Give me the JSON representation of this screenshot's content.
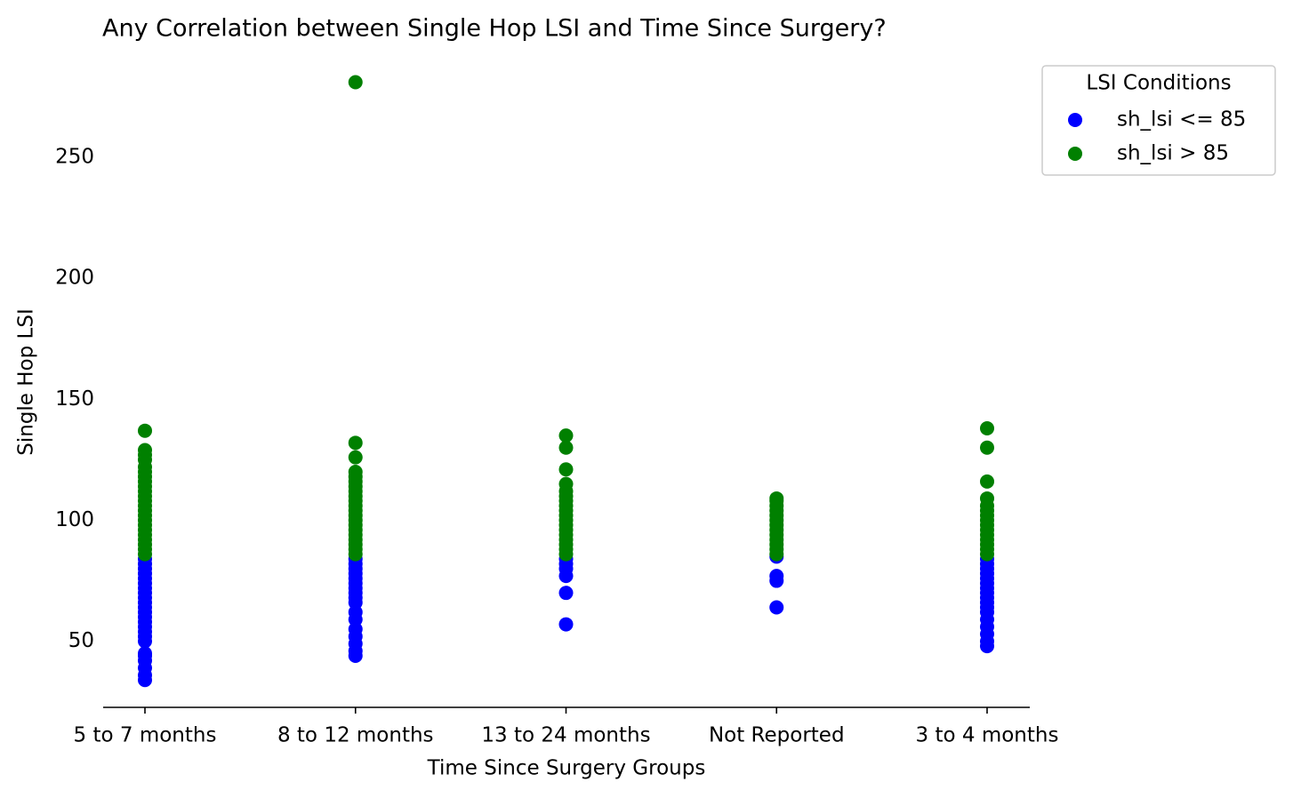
{
  "chart_data": {
    "type": "scatter",
    "title": "Any Correlation between Single Hop LSI and Time Since Surgery?",
    "x_label": "Time Since Surgery Groups",
    "y_label": "Single Hop LSI",
    "categories": [
      "5 to 7 months",
      "8 to 12 months",
      "13 to 24 months",
      "Not Reported",
      "3 to 4 months"
    ],
    "ylim": [
      22.7,
      293.3
    ],
    "yticks": [
      50,
      100,
      150,
      200,
      250
    ],
    "legend_title": "LSI Conditions",
    "legend": "upper right outside",
    "series": [
      {
        "name": "sh_lsi <= 85",
        "color": "#0000ff",
        "values": [
          [
            34,
            36,
            39,
            42,
            44,
            45,
            50,
            52,
            54,
            56,
            58,
            60,
            62,
            64,
            66,
            68,
            70,
            72,
            74,
            76,
            78,
            80,
            82,
            84
          ],
          [
            44,
            46,
            49,
            52,
            55,
            59,
            62,
            66,
            68,
            70,
            72,
            74,
            76,
            78,
            80,
            82,
            84
          ],
          [
            57,
            70,
            77,
            80,
            82,
            84
          ],
          [
            64,
            75,
            77,
            85
          ],
          [
            48,
            50,
            53,
            56,
            59,
            62,
            64,
            66,
            68,
            70,
            72,
            74,
            76,
            78,
            80,
            82,
            84
          ]
        ]
      },
      {
        "name": "sh_lsi > 85",
        "color": "#008000",
        "values": [
          [
            86,
            88,
            90,
            92,
            94,
            96,
            98,
            100,
            102,
            104,
            106,
            108,
            110,
            112,
            114,
            116,
            118,
            120,
            122,
            125,
            127,
            129,
            137
          ],
          [
            86,
            88,
            90,
            92,
            94,
            96,
            98,
            100,
            102,
            104,
            106,
            108,
            110,
            112,
            114,
            116,
            118,
            120,
            126,
            132,
            281
          ],
          [
            86,
            88,
            90,
            92,
            94,
            96,
            98,
            100,
            102,
            104,
            106,
            108,
            110,
            112,
            115,
            121,
            130,
            135
          ],
          [
            86,
            88,
            90,
            92,
            94,
            96,
            98,
            100,
            102,
            104,
            106,
            108,
            109
          ],
          [
            86,
            88,
            90,
            92,
            94,
            96,
            98,
            100,
            102,
            104,
            106,
            109,
            116,
            130,
            138
          ]
        ]
      }
    ]
  }
}
